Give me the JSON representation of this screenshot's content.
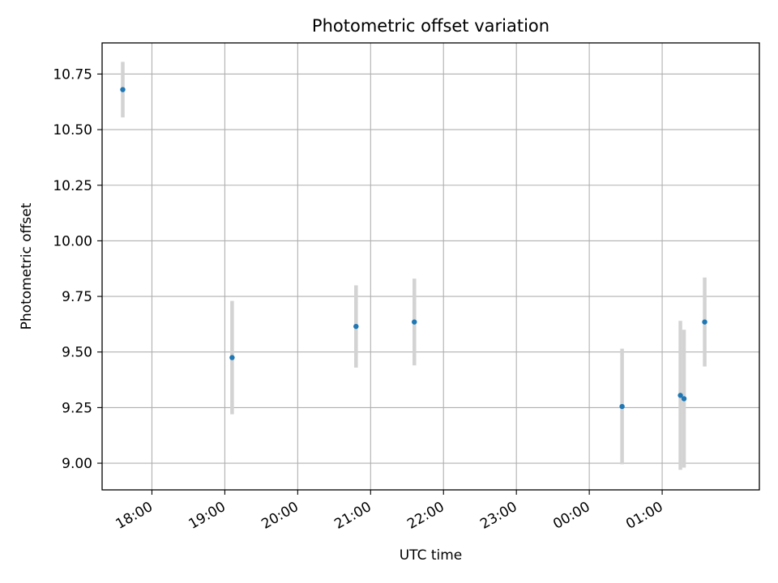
{
  "chart_data": {
    "type": "scatter",
    "title": "Photometric offset variation",
    "xlabel": "UTC time",
    "ylabel": "Photometric offset",
    "x_ticks": [
      "18:00",
      "19:00",
      "20:00",
      "21:00",
      "22:00",
      "23:00",
      "00:00",
      "01:00"
    ],
    "y_ticks": [
      "9.00",
      "9.25",
      "9.50",
      "9.75",
      "10.00",
      "10.25",
      "10.50",
      "10.75"
    ],
    "x_range": [
      "17:19",
      "02:20"
    ],
    "y_range": [
      8.88,
      10.89
    ],
    "grid": true,
    "marker_color": "#1f77b4",
    "errorbar_color": "#d3d3d3",
    "points": [
      {
        "time": "17:36",
        "y": 10.68,
        "yerr": 0.125
      },
      {
        "time": "19:06",
        "y": 9.475,
        "yerr": 0.255
      },
      {
        "time": "20:48",
        "y": 9.615,
        "yerr": 0.185
      },
      {
        "time": "21:36",
        "y": 9.635,
        "yerr": 0.195
      },
      {
        "time": "00:27",
        "y": 9.255,
        "yerr": 0.26
      },
      {
        "time": "01:15",
        "y": 9.305,
        "yerr": 0.335
      },
      {
        "time": "01:18",
        "y": 9.29,
        "yerr": 0.31
      },
      {
        "time": "01:35",
        "y": 9.635,
        "yerr": 0.2
      }
    ]
  }
}
